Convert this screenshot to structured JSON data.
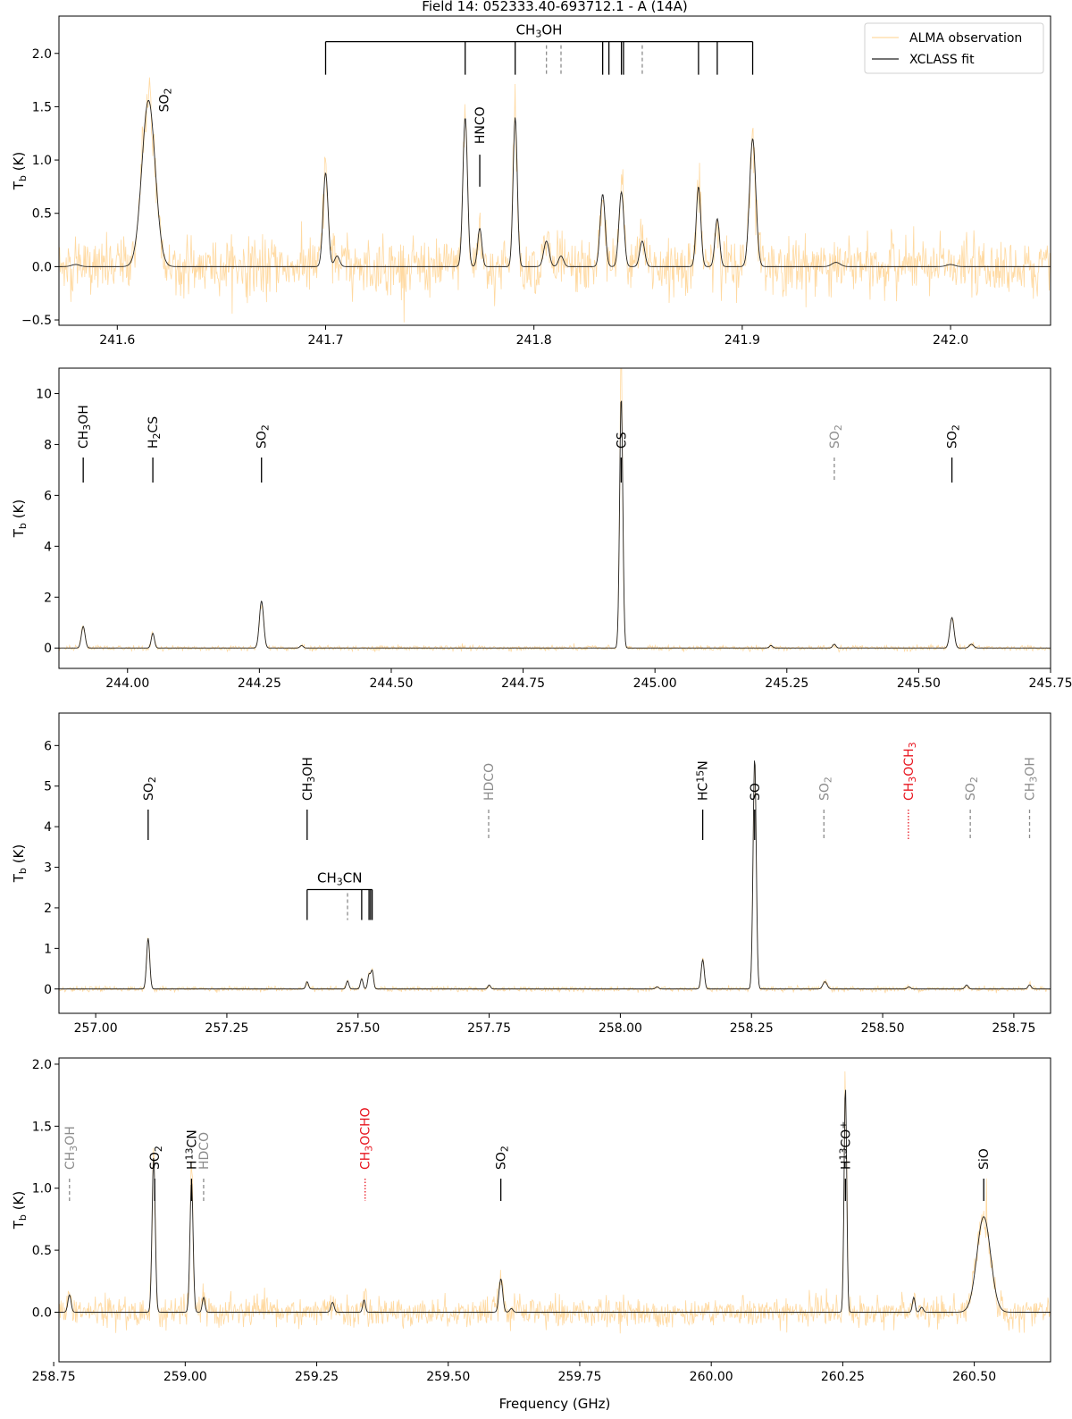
{
  "figure": {
    "title": "Field 14: 052333.40-693712.1 - A (14A)",
    "xlabel": "Frequency (GHz)"
  },
  "colors": {
    "observation": "#ffd9a0",
    "fit": "#222222",
    "identified": "#000000",
    "tentative": "#8c8c8c",
    "com": "#e8141e"
  },
  "legend": {
    "placement": "top-right",
    "entries": [
      "ALMA observation",
      "XCLASS fit"
    ]
  },
  "chart_data": [
    {
      "type": "line",
      "ylabel": "T_b (K)",
      "xlim": [
        241.572,
        242.048
      ],
      "ylim": [
        -0.55,
        2.35
      ],
      "xticks": [
        241.6,
        241.7,
        241.8,
        241.9,
        242.0
      ],
      "xtick_labels": [
        "241.6",
        "241.7",
        "241.8",
        "241.9",
        "242.0"
      ],
      "yticks": [
        -0.5,
        0.0,
        0.5,
        1.0,
        1.5,
        2.0
      ],
      "ytick_labels": [
        "−0.5",
        "0.0",
        "0.5",
        "1.0",
        "1.5",
        "2.0"
      ],
      "series": [
        {
          "name": "XCLASS fit",
          "peaks": [
            [
              241.615,
              1.56,
              0.0032
            ],
            [
              241.7,
              0.88,
              0.0012
            ],
            [
              241.7055,
              0.1,
              0.0012
            ],
            [
              241.767,
              1.4,
              0.0011
            ],
            [
              241.774,
              0.36,
              0.001
            ],
            [
              241.791,
              1.4,
              0.001
            ],
            [
              241.806,
              0.24,
              0.0013
            ],
            [
              241.813,
              0.1,
              0.0012
            ],
            [
              241.833,
              0.68,
              0.0012
            ],
            [
              241.842,
              0.7,
              0.0012
            ],
            [
              241.852,
              0.24,
              0.0012
            ],
            [
              241.879,
              0.75,
              0.0011
            ],
            [
              241.888,
              0.45,
              0.0011
            ],
            [
              241.905,
              1.2,
              0.0015
            ],
            [
              241.58,
              0.02,
              0.002
            ],
            [
              241.945,
              0.04,
              0.002
            ],
            [
              242.0,
              0.02,
              0.002
            ]
          ]
        }
      ],
      "line_ids": [
        {
          "label": "SO2",
          "style": "solid",
          "x": 241.615,
          "y0": null,
          "y1": null
        },
        {
          "label": "HNCO",
          "style": "solid",
          "x": 241.774,
          "y0": 0.75,
          "y1": 1.05
        }
      ],
      "groups": [
        {
          "label": "CH3OH",
          "bar_y": 2.11,
          "bottom_y": 1.8,
          "bar_x": [
            241.7,
            241.905
          ],
          "solid": [
            241.7,
            241.767,
            241.791,
            241.833,
            241.836,
            241.842,
            241.843,
            241.879,
            241.888,
            241.905
          ],
          "dashed": [
            241.806,
            241.813,
            241.852
          ]
        }
      ]
    },
    {
      "type": "line",
      "ylabel": "T_b (K)",
      "xlim": [
        243.87,
        245.75
      ],
      "ylim": [
        -0.8,
        11.0
      ],
      "xticks": [
        244.0,
        244.25,
        244.5,
        244.75,
        245.0,
        245.25,
        245.5,
        245.75
      ],
      "xtick_labels": [
        "244.00",
        "244.25",
        "244.50",
        "244.75",
        "245.00",
        "245.25",
        "245.50",
        "245.75"
      ],
      "yticks": [
        0,
        2,
        4,
        6,
        8,
        10
      ],
      "ytick_labels": [
        "0",
        "2",
        "4",
        "6",
        "8",
        "10"
      ],
      "series": [
        {
          "name": "XCLASS fit",
          "peaks": [
            [
              243.916,
              0.85,
              0.0035
            ],
            [
              244.048,
              0.58,
              0.003
            ],
            [
              244.254,
              1.85,
              0.004
            ],
            [
              244.33,
              0.1,
              0.003
            ],
            [
              244.936,
              9.9,
              0.003
            ],
            [
              245.22,
              0.1,
              0.003
            ],
            [
              245.34,
              0.15,
              0.003
            ],
            [
              245.563,
              1.2,
              0.004
            ],
            [
              245.6,
              0.15,
              0.004
            ]
          ]
        }
      ],
      "line_ids": [
        {
          "label": "CH3OH",
          "style": "solid",
          "x": 243.916
        },
        {
          "label": "H2CS",
          "style": "solid",
          "x": 244.048
        },
        {
          "label": "SO2",
          "style": "solid",
          "x": 244.254
        },
        {
          "label": "CS",
          "style": "solid",
          "x": 244.936
        },
        {
          "label": "SO2",
          "style": "dashed",
          "x": 245.34
        },
        {
          "label": "SO2",
          "style": "solid",
          "x": 245.563
        }
      ]
    },
    {
      "type": "line",
      "ylabel": "T_b (K)",
      "xlim": [
        256.93,
        258.82
      ],
      "ylim": [
        -0.6,
        6.8
      ],
      "xticks": [
        257.0,
        257.25,
        257.5,
        257.75,
        258.0,
        258.25,
        258.5,
        258.75
      ],
      "xtick_labels": [
        "257.00",
        "257.25",
        "257.50",
        "257.75",
        "258.00",
        "258.25",
        "258.50",
        "258.75"
      ],
      "yticks": [
        0,
        1,
        2,
        3,
        4,
        5,
        6
      ],
      "ytick_labels": [
        "0",
        "1",
        "2",
        "3",
        "4",
        "5",
        "6"
      ],
      "series": [
        {
          "name": "XCLASS fit",
          "peaks": [
            [
              257.1,
              1.25,
              0.003
            ],
            [
              257.403,
              0.18,
              0.0025
            ],
            [
              257.48,
              0.2,
              0.0025
            ],
            [
              257.507,
              0.25,
              0.0025
            ],
            [
              257.521,
              0.35,
              0.0025
            ],
            [
              257.527,
              0.45,
              0.0025
            ],
            [
              257.75,
              0.1,
              0.0025
            ],
            [
              258.07,
              0.05,
              0.003
            ],
            [
              258.157,
              0.72,
              0.003
            ],
            [
              258.256,
              5.7,
              0.003
            ],
            [
              258.39,
              0.18,
              0.004
            ],
            [
              258.55,
              0.05,
              0.003
            ],
            [
              258.66,
              0.1,
              0.003
            ],
            [
              258.78,
              0.1,
              0.003
            ]
          ]
        }
      ],
      "line_ids": [
        {
          "label": "SO2",
          "style": "solid",
          "x": 257.1
        },
        {
          "label": "CH3OH",
          "style": "solid",
          "x": 257.403
        },
        {
          "label": "HDCO",
          "style": "dashed",
          "x": 257.749
        },
        {
          "label": "HC15N",
          "style": "solid",
          "x": 258.157
        },
        {
          "label": "SO",
          "style": "solid",
          "x": 258.256
        },
        {
          "label": "SO2",
          "style": "dashed",
          "x": 258.388
        },
        {
          "label": "CH3OCH3",
          "style": "dotted",
          "x": 258.549
        },
        {
          "label": "SO2",
          "style": "dashed",
          "x": 258.667
        },
        {
          "label": "CH3OH",
          "style": "dashed",
          "x": 258.78
        }
      ],
      "groups": [
        {
          "label": "CH3CN",
          "bar_y": 2.45,
          "bottom_y": 1.7,
          "bar_x": [
            257.403,
            257.527
          ],
          "solid": [
            257.403,
            257.507,
            257.521,
            257.524,
            257.527
          ],
          "dashed": [
            257.48
          ]
        }
      ]
    },
    {
      "type": "line",
      "ylabel": "T_b (K)",
      "xlim": [
        258.76,
        260.645
      ],
      "ylim": [
        -0.4,
        2.05
      ],
      "xticks": [
        258.75,
        259.0,
        259.25,
        259.5,
        259.75,
        260.0,
        260.25,
        260.5
      ],
      "xtick_labels": [
        "258.75",
        "259.00",
        "259.25",
        "259.50",
        "259.75",
        "260.00",
        "260.25",
        "260.50"
      ],
      "yticks": [
        0.0,
        0.5,
        1.0,
        1.5,
        2.0
      ],
      "ytick_labels": [
        "0.0",
        "0.5",
        "1.0",
        "1.5",
        "2.0"
      ],
      "series": [
        {
          "name": "XCLASS fit",
          "peaks": [
            [
              258.78,
              0.14,
              0.003
            ],
            [
              258.94,
              1.25,
              0.003
            ],
            [
              259.012,
              1.05,
              0.003
            ],
            [
              259.035,
              0.12,
              0.0025
            ],
            [
              259.28,
              0.08,
              0.003
            ],
            [
              259.34,
              0.1,
              0.0025
            ],
            [
              259.6,
              0.27,
              0.0035
            ],
            [
              259.62,
              0.03,
              0.003
            ],
            [
              260.255,
              1.82,
              0.0025
            ],
            [
              260.385,
              0.12,
              0.0025
            ],
            [
              260.4,
              0.04,
              0.003
            ],
            [
              260.518,
              0.77,
              0.013
            ]
          ]
        }
      ],
      "line_ids": [
        {
          "label": "CH3OH",
          "style": "dashed",
          "x": 258.78
        },
        {
          "label": "SO2",
          "style": "solid",
          "x": 258.942
        },
        {
          "label": "H13CN",
          "style": "solid",
          "x": 259.012
        },
        {
          "label": "HDCO",
          "style": "dashed",
          "x": 259.035
        },
        {
          "label": "CH3OCHO",
          "style": "dotted",
          "x": 259.342
        },
        {
          "label": "SO2",
          "style": "solid",
          "x": 259.6
        },
        {
          "label": "H13CO+",
          "style": "solid",
          "x": 260.255
        },
        {
          "label": "SiO",
          "style": "solid",
          "x": 260.518
        }
      ]
    }
  ]
}
